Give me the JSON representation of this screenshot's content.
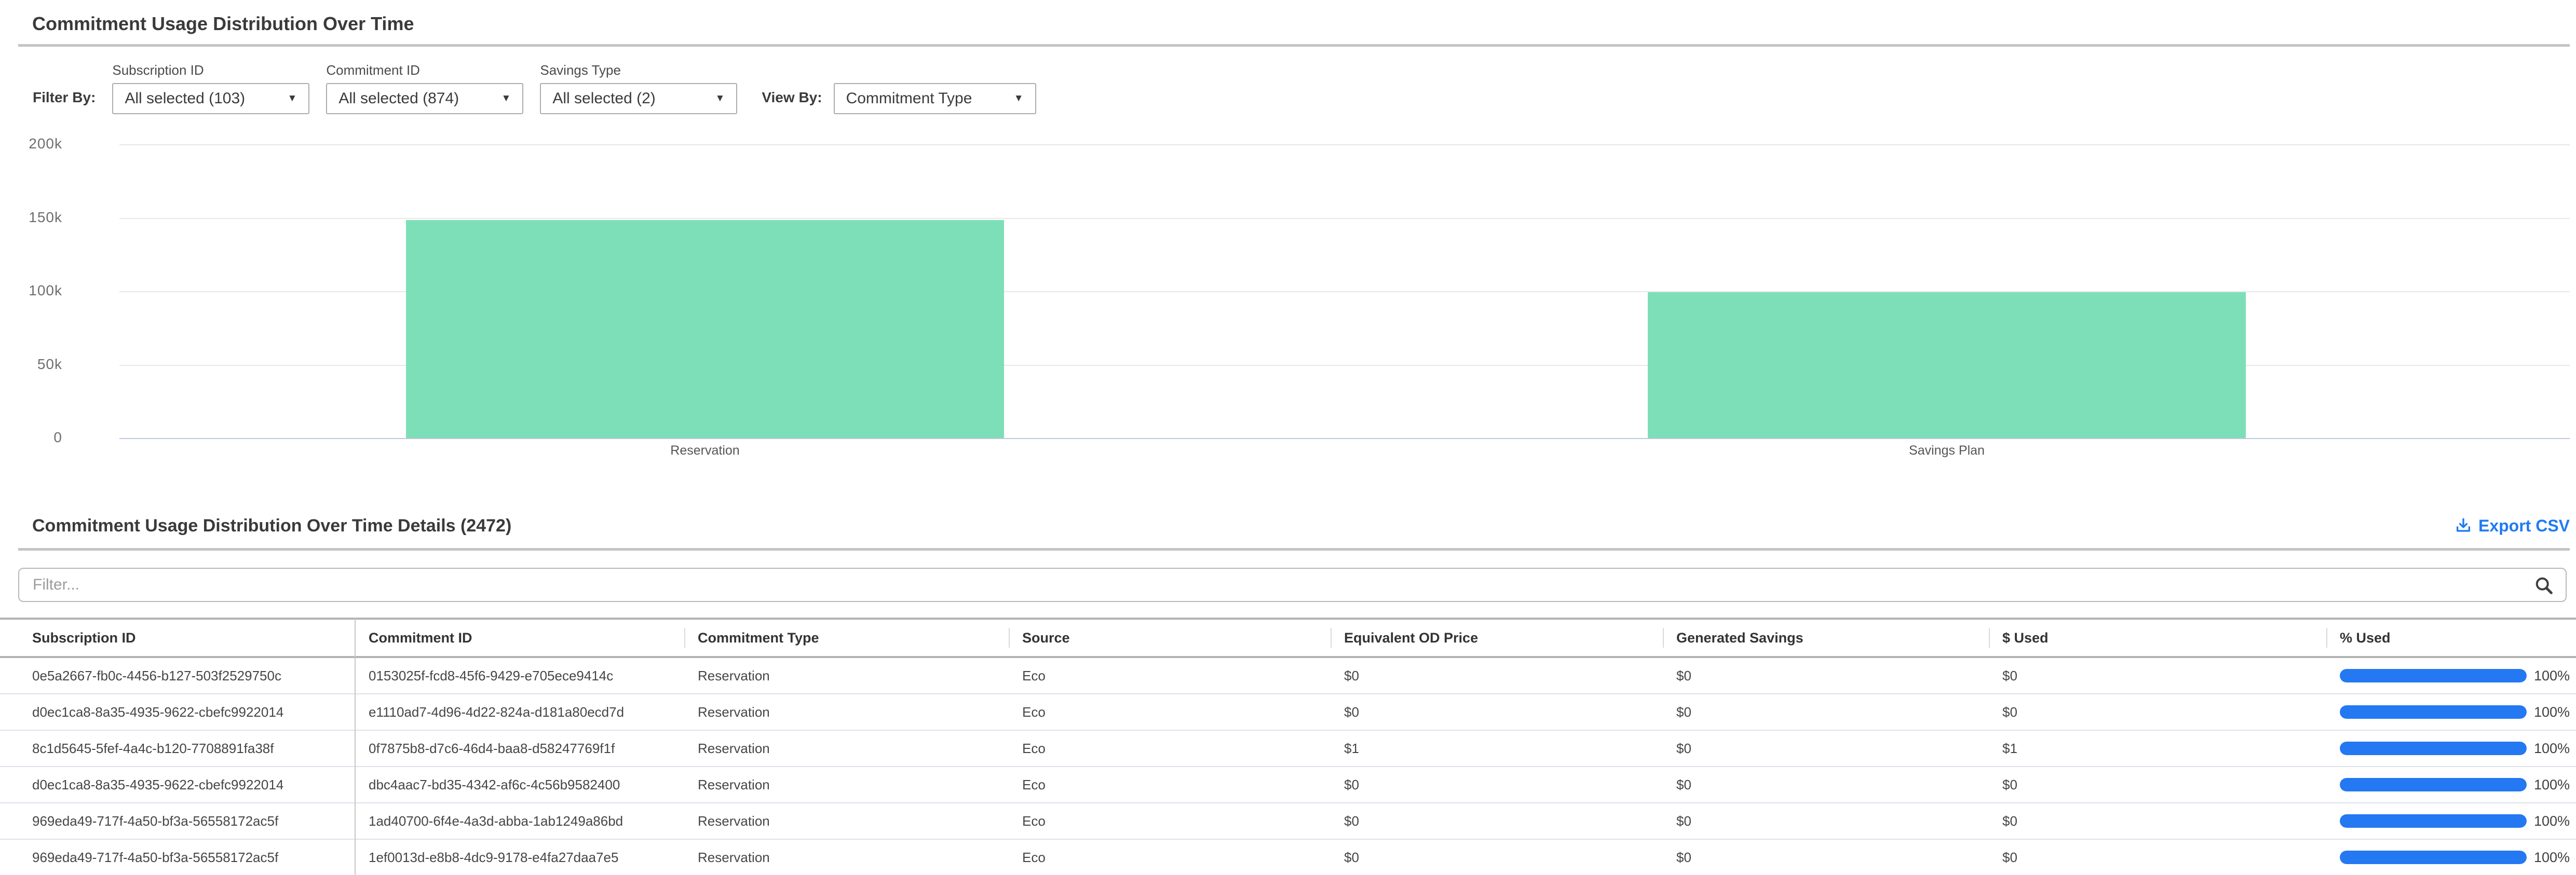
{
  "page": {
    "title": "Commitment Usage Distribution Over Time"
  },
  "filters": {
    "filter_by_label": "Filter By:",
    "dropdowns": [
      {
        "label": "Subscription ID",
        "value": "All selected (103)"
      },
      {
        "label": "Commitment ID",
        "value": "All selected (874)"
      },
      {
        "label": "Savings Type",
        "value": "All selected (2)"
      }
    ],
    "view_by_label": "View By:",
    "view_by_value": "Commitment Type",
    "caret_icon": "▼"
  },
  "chart_data": {
    "type": "bar",
    "categories": [
      "Reservation",
      "Savings Plan"
    ],
    "values": [
      148500,
      99300
    ],
    "title": "",
    "xlabel": "",
    "ylabel": "",
    "ylim": [
      0,
      200000
    ],
    "ytick_step": 50000,
    "ytick_labels": [
      "0",
      "50k",
      "100k",
      "150k",
      "200k"
    ],
    "grid": true,
    "legend": false,
    "bar_color": "#7ddfb8"
  },
  "details": {
    "title": "Commitment Usage Distribution Over Time Details (2472)",
    "export": {
      "label": "Export CSV",
      "icon": "download-icon",
      "color": "#1f7af2"
    },
    "filter_input": {
      "value": "",
      "placeholder": "Filter...",
      "icon": "search-icon"
    },
    "table": {
      "columns": [
        "Subscription ID",
        "Commitment ID",
        "Commitment Type",
        "Source",
        "Equivalent OD Price",
        "Generated Savings",
        "$ Used",
        "% Used"
      ],
      "rows": [
        {
          "subscription_id": "0e5a2667-fb0c-4456-b127-503f2529750c",
          "commitment_id": "0153025f-fcd8-45f6-9429-e705ece9414c",
          "commitment_type": "Reservation",
          "source": "Eco",
          "equivalent_od_price": "$0",
          "generated_savings": "$0",
          "dollar_used": "$0",
          "pct_used": "100%",
          "pct_value": 100
        },
        {
          "subscription_id": "d0ec1ca8-8a35-4935-9622-cbefc9922014",
          "commitment_id": "e1110ad7-4d96-4d22-824a-d181a80ecd7d",
          "commitment_type": "Reservation",
          "source": "Eco",
          "equivalent_od_price": "$0",
          "generated_savings": "$0",
          "dollar_used": "$0",
          "pct_used": "100%",
          "pct_value": 100
        },
        {
          "subscription_id": "8c1d5645-5fef-4a4c-b120-7708891fa38f",
          "commitment_id": "0f7875b8-d7c6-46d4-baa8-d58247769f1f",
          "commitment_type": "Reservation",
          "source": "Eco",
          "equivalent_od_price": "$1",
          "generated_savings": "$0",
          "dollar_used": "$1",
          "pct_used": "100%",
          "pct_value": 100
        },
        {
          "subscription_id": "d0ec1ca8-8a35-4935-9622-cbefc9922014",
          "commitment_id": "dbc4aac7-bd35-4342-af6c-4c56b9582400",
          "commitment_type": "Reservation",
          "source": "Eco",
          "equivalent_od_price": "$0",
          "generated_savings": "$0",
          "dollar_used": "$0",
          "pct_used": "100%",
          "pct_value": 100
        },
        {
          "subscription_id": "969eda49-717f-4a50-bf3a-56558172ac5f",
          "commitment_id": "1ad40700-6f4e-4a3d-abba-1ab1249a86bd",
          "commitment_type": "Reservation",
          "source": "Eco",
          "equivalent_od_price": "$0",
          "generated_savings": "$0",
          "dollar_used": "$0",
          "pct_used": "100%",
          "pct_value": 100
        },
        {
          "subscription_id": "969eda49-717f-4a50-bf3a-56558172ac5f",
          "commitment_id": "1ef0013d-e8b8-4dc9-9178-e4fa27daa7e5",
          "commitment_type": "Reservation",
          "source": "Eco",
          "equivalent_od_price": "$0",
          "generated_savings": "$0",
          "dollar_used": "$0",
          "pct_used": "100%",
          "pct_value": 100
        }
      ]
    }
  },
  "colors": {
    "accent_blue": "#1f7af2",
    "progress_blue": "#2478f2",
    "bar_green": "#7ddfb8",
    "divider_gray": "#c4c4c4",
    "row_divider": "#dde2eb"
  }
}
